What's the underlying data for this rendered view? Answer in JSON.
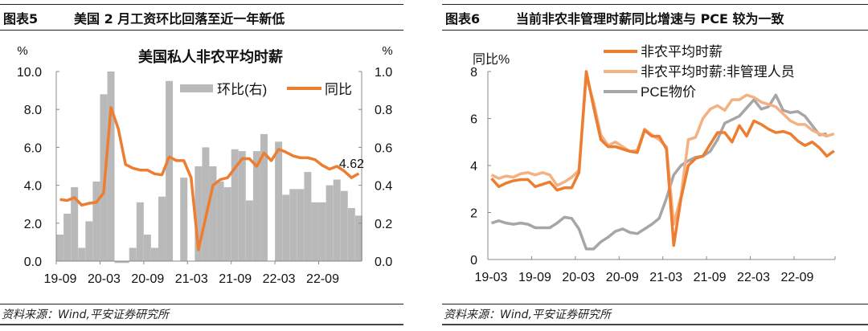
{
  "left_panel": {
    "figure_no": "图表5",
    "figure_title": "美国 2 月工资环比回落至近一年新低",
    "source": "资料来源：Wind,平安证券研究所"
  },
  "right_panel": {
    "figure_no": "图表6",
    "figure_title": "当前非农非管理时薪同比增速与 PCE 较为一致",
    "source": "资料来源：Wind,平安证券研究所"
  },
  "colors": {
    "bar": "#b9b9b9",
    "orange": "#ed7d31",
    "light_orange": "#f4b183",
    "grey": "#a6a6a6",
    "axis": "#888888"
  },
  "chart_data": [
    {
      "type": "bar+line",
      "title": "美国私人非农平均时薪",
      "ylabel_left": "%",
      "ylabel_right": "%",
      "ylim_left": [
        0,
        10
      ],
      "ylim_right": [
        0,
        1
      ],
      "yticks_left": [
        "0.0",
        "2.0",
        "4.0",
        "6.0",
        "8.0",
        "10.0"
      ],
      "yticks_right": [
        "0.0",
        "0.2",
        "0.4",
        "0.6",
        "0.8",
        "1.0"
      ],
      "xticks": [
        "19-09",
        "20-03",
        "20-09",
        "21-03",
        "21-09",
        "22-03",
        "22-09"
      ],
      "start_month": "19-09",
      "legend_location": "top-right",
      "annotation": "4.62",
      "series": [
        {
          "name": "环比(右)",
          "type": "bar",
          "axis": "right",
          "values": [
            0.14,
            0.25,
            0.39,
            0.07,
            0.21,
            0.42,
            0.88,
            1.0,
            -0.01,
            -0.01,
            0.07,
            0.31,
            0.14,
            0.07,
            0.34,
            0.95,
            0,
            0.44,
            0,
            0.5,
            0.6,
            0.5,
            0.42,
            0.39,
            0.59,
            0.58,
            0.32,
            0.58,
            0.67,
            0,
            0.63,
            0.35,
            0.38,
            0.38,
            0.47,
            0.31,
            0.31,
            0.4,
            0.43,
            0.37,
            0.28,
            0.24
          ]
        },
        {
          "name": "同比",
          "type": "line",
          "axis": "left",
          "values": [
            3.25,
            3.2,
            3.35,
            2.95,
            3.05,
            3.1,
            3.6,
            8.1,
            7.0,
            5.1,
            4.9,
            4.8,
            4.8,
            4.6,
            4.55,
            5.5,
            5.3,
            5.3,
            4.4,
            0.6,
            2.3,
            4.0,
            4.3,
            4.4,
            4.9,
            5.4,
            5.4,
            5.0,
            5.7,
            5.3,
            5.9,
            5.75,
            5.55,
            5.45,
            5.45,
            5.35,
            5.05,
            4.85,
            5.0,
            4.75,
            4.4,
            4.62
          ]
        }
      ]
    },
    {
      "type": "line",
      "title": "",
      "ylabel": "同比%",
      "ylim": [
        0,
        8
      ],
      "yticks": [
        "0",
        "2",
        "4",
        "6",
        "8"
      ],
      "xticks": [
        "19-03",
        "19-09",
        "20-03",
        "20-09",
        "21-03",
        "21-09",
        "22-03",
        "22-09"
      ],
      "start_month": "19-03",
      "legend_location": "top",
      "series": [
        {
          "name": "非农平均时薪",
          "values": [
            3.45,
            3.1,
            3.25,
            3.35,
            3.4,
            3.4,
            3.1,
            3.2,
            3.3,
            2.95,
            3.05,
            3.05,
            3.7,
            8.0,
            6.5,
            5.1,
            4.8,
            4.8,
            4.7,
            4.6,
            4.55,
            5.5,
            5.25,
            5.25,
            4.7,
            0.6,
            2.6,
            4.0,
            4.3,
            4.4,
            4.9,
            5.4,
            5.4,
            5.0,
            5.7,
            5.25,
            5.9,
            5.75,
            5.55,
            5.4,
            5.45,
            5.35,
            5.05,
            4.85,
            5.0,
            4.75,
            4.4,
            4.62
          ]
        },
        {
          "name": "非农平均时薪:非管理人员",
          "values": [
            3.6,
            3.45,
            3.55,
            3.5,
            3.65,
            3.7,
            3.6,
            3.7,
            3.6,
            3.15,
            3.3,
            3.5,
            3.8,
            7.8,
            6.7,
            5.3,
            4.85,
            5.0,
            4.8,
            4.6,
            4.65,
            5.55,
            5.3,
            5.1,
            4.8,
            1.5,
            2.7,
            5.1,
            5.2,
            6.0,
            6.4,
            6.55,
            6.35,
            6.8,
            6.8,
            7.0,
            6.9,
            6.7,
            6.6,
            6.5,
            6.2,
            5.9,
            5.75,
            5.75,
            5.5,
            5.35,
            5.25,
            5.35
          ]
        },
        {
          "name": "PCE物价",
          "values": [
            1.55,
            1.65,
            1.55,
            1.5,
            1.55,
            1.5,
            1.35,
            1.35,
            1.35,
            1.55,
            1.8,
            1.75,
            1.3,
            0.45,
            0.45,
            0.75,
            0.95,
            1.2,
            1.3,
            1.15,
            1.1,
            1.3,
            1.5,
            1.75,
            2.6,
            3.6,
            4.0,
            4.2,
            4.35,
            4.4,
            4.6,
            5.1,
            5.8,
            5.95,
            6.1,
            6.45,
            6.8,
            6.4,
            6.5,
            7.0,
            6.35,
            6.25,
            6.3,
            6.1,
            5.7,
            5.3,
            5.35
          ]
        }
      ]
    }
  ]
}
